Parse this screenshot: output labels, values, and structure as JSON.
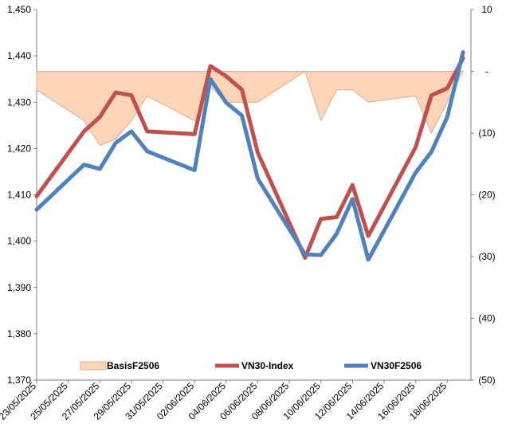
{
  "chart_data": {
    "type": "line",
    "title": "",
    "dates": [
      "23/05/2025",
      "26/05/2025",
      "27/05/2025",
      "28/05/2025",
      "29/05/2025",
      "30/05/2025",
      "02/06/2025",
      "03/06/2025",
      "04/06/2025",
      "05/06/2025",
      "06/06/2025",
      "09/06/2025",
      "10/06/2025",
      "11/06/2025",
      "12/06/2025",
      "13/06/2025",
      "16/06/2025",
      "17/06/2025",
      "18/06/2025",
      "19/06/2025"
    ],
    "x_ticks": [
      "23/05/2025",
      "25/05/2025",
      "27/05/2025",
      "29/05/2025",
      "31/05/2025",
      "02/06/2025",
      "04/06/2025",
      "06/06/2025",
      "08/06/2025",
      "10/06/2025",
      "12/06/2025",
      "14/06/2025",
      "16/06/2025",
      "18/06/2025"
    ],
    "y_left": {
      "min": 1370,
      "max": 1450,
      "ticks": [
        "1,370",
        "1,380",
        "1,390",
        "1,400",
        "1,410",
        "1,420",
        "1,430",
        "1,440",
        "1,450"
      ]
    },
    "y_right": {
      "min": -50,
      "max": 10,
      "ticks": [
        "(50)",
        "(40)",
        "(30)",
        "(20)",
        "(10)",
        "-",
        "10"
      ]
    },
    "series": [
      {
        "name": "BasisF2506",
        "kind": "area",
        "axis": "right",
        "color": "#fbd5b5",
        "border": "#e5a99a",
        "points": [
          [
            "23/05/2025",
            -3
          ],
          [
            "26/05/2025",
            -8
          ],
          [
            "27/05/2025",
            -12
          ],
          [
            "28/05/2025",
            -11
          ],
          [
            "29/05/2025",
            -8
          ],
          [
            "30/05/2025",
            -4
          ],
          [
            "02/06/2025",
            -8
          ],
          [
            "03/06/2025",
            -2.5
          ],
          [
            "04/06/2025",
            -5
          ],
          [
            "05/06/2025",
            -5
          ],
          [
            "06/06/2025",
            -5
          ],
          [
            "09/06/2025",
            0
          ],
          [
            "10/06/2025",
            -8
          ],
          [
            "11/06/2025",
            -3
          ],
          [
            "12/06/2025",
            -3
          ],
          [
            "13/06/2025",
            -5
          ],
          [
            "16/06/2025",
            -4
          ],
          [
            "17/06/2025",
            -10
          ],
          [
            "18/06/2025",
            -5
          ],
          [
            "19/06/2025",
            0
          ]
        ]
      },
      {
        "name": "VN30-Index",
        "kind": "line",
        "axis": "left",
        "color": "#c0504d",
        "points": [
          [
            "23/05/2025",
            1409.7
          ],
          [
            "26/05/2025",
            1423.7
          ],
          [
            "27/05/2025",
            1426.8
          ],
          [
            "28/05/2025",
            1432.1
          ],
          [
            "29/05/2025",
            1431.5
          ],
          [
            "30/05/2025",
            1423.7
          ],
          [
            "02/06/2025",
            1423.1
          ],
          [
            "03/06/2025",
            1437.8
          ],
          [
            "04/06/2025",
            1435.6
          ],
          [
            "05/06/2025",
            1432.7
          ],
          [
            "06/06/2025",
            1419.1
          ],
          [
            "09/06/2025",
            1396.4
          ],
          [
            "10/06/2025",
            1404.8
          ],
          [
            "11/06/2025",
            1405.2
          ],
          [
            "12/06/2025",
            1412.1
          ],
          [
            "13/06/2025",
            1401.1
          ],
          [
            "16/06/2025",
            1420.3
          ],
          [
            "17/06/2025",
            1431.5
          ],
          [
            "18/06/2025",
            1433.0
          ],
          [
            "19/06/2025",
            1439.5
          ]
        ]
      },
      {
        "name": "VN30F2506",
        "kind": "line",
        "axis": "left",
        "color": "#4f81bd",
        "points": [
          [
            "23/05/2025",
            1406.8
          ],
          [
            "26/05/2025",
            1416.5
          ],
          [
            "27/05/2025",
            1415.6
          ],
          [
            "28/05/2025",
            1421.2
          ],
          [
            "29/05/2025",
            1423.7
          ],
          [
            "30/05/2025",
            1419.4
          ],
          [
            "02/06/2025",
            1415.3
          ],
          [
            "03/06/2025",
            1435.0
          ],
          [
            "04/06/2025",
            1429.9
          ],
          [
            "05/06/2025",
            1427.1
          ],
          [
            "06/06/2025",
            1413.5
          ],
          [
            "09/06/2025",
            1397.1
          ],
          [
            "10/06/2025",
            1397.0
          ],
          [
            "11/06/2025",
            1401.6
          ],
          [
            "12/06/2025",
            1409.1
          ],
          [
            "13/06/2025",
            1396.0
          ],
          [
            "16/06/2025",
            1414.8
          ],
          [
            "17/06/2025",
            1419.3
          ],
          [
            "18/06/2025",
            1426.8
          ],
          [
            "19/06/2025",
            1440.8
          ]
        ]
      }
    ],
    "legend": {
      "position": "bottom-inside",
      "entries": [
        "BasisF2506",
        "VN30-Index",
        "VN30F2506"
      ]
    }
  }
}
